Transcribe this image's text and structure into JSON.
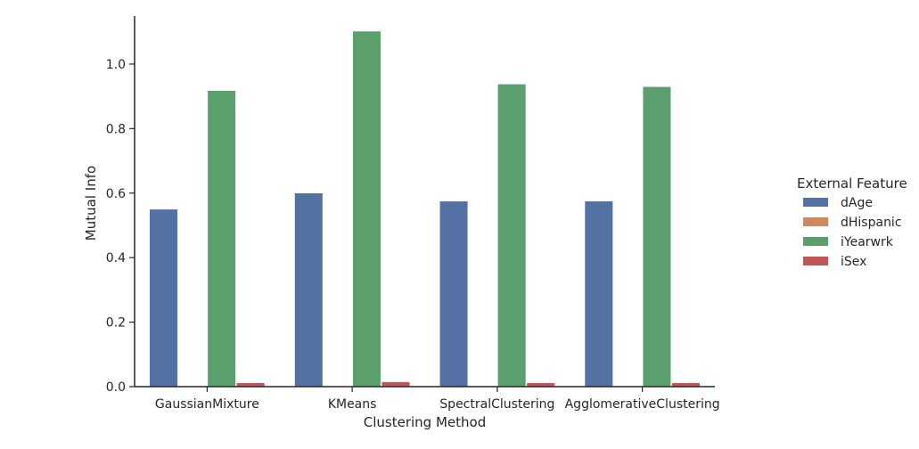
{
  "chart_data": {
    "type": "bar",
    "title": "",
    "xlabel": "Clustering Method",
    "ylabel": "Mutual Info",
    "categories": [
      "GaussianMixture",
      "KMeans",
      "SpectralClustering",
      "AgglomerativeClustering"
    ],
    "ylim": [
      0,
      1.16
    ],
    "yticks": [
      "0.0",
      "0.2",
      "0.4",
      "0.6",
      "0.8",
      "1.0"
    ],
    "grid": false,
    "legend": {
      "title": "External Feature",
      "placement": "right"
    },
    "series": [
      {
        "name": "dAge",
        "color": "#5471a4",
        "values": [
          0.55,
          0.6,
          0.575,
          0.575
        ]
      },
      {
        "name": "dHispanic",
        "color": "#cc8963",
        "values": [
          0.0,
          0.0,
          0.0,
          0.0
        ]
      },
      {
        "name": "iYearwrk",
        "color": "#5b9f6d",
        "values": [
          0.918,
          1.102,
          0.938,
          0.93
        ]
      },
      {
        "name": "iSex",
        "color": "#c0555a",
        "values": [
          0.012,
          0.015,
          0.012,
          0.012
        ]
      }
    ]
  }
}
